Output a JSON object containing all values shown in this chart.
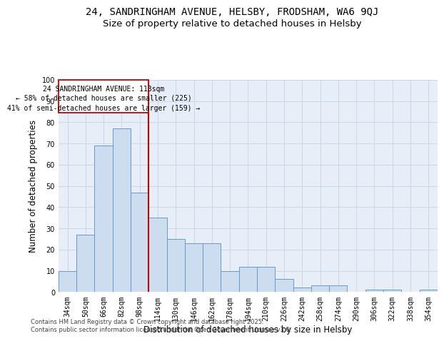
{
  "title_line1": "24, SANDRINGHAM AVENUE, HELSBY, FRODSHAM, WA6 9QJ",
  "title_line2": "Size of property relative to detached houses in Helsby",
  "xlabel": "Distribution of detached houses by size in Helsby",
  "ylabel": "Number of detached properties",
  "categories": [
    "34sqm",
    "50sqm",
    "66sqm",
    "82sqm",
    "98sqm",
    "114sqm",
    "130sqm",
    "146sqm",
    "162sqm",
    "178sqm",
    "194sqm",
    "210sqm",
    "226sqm",
    "242sqm",
    "258sqm",
    "274sqm",
    "290sqm",
    "306sqm",
    "322sqm",
    "338sqm",
    "354sqm"
  ],
  "values": [
    10,
    27,
    69,
    77,
    47,
    35,
    25,
    23,
    23,
    10,
    12,
    12,
    6,
    2,
    3,
    3,
    0,
    1,
    1,
    0,
    1
  ],
  "bar_color": "#ccddf0",
  "bar_edge_color": "#6699cc",
  "red_line_x": 4.5,
  "annotation_text_line1": "24 SANDRINGHAM AVENUE: 113sqm",
  "annotation_text_line2": "← 58% of detached houses are smaller (225)",
  "annotation_text_line3": "41% of semi-detached houses are larger (159) →",
  "annotation_box_edge": "#cc0000",
  "ylim": [
    0,
    100
  ],
  "yticks": [
    0,
    10,
    20,
    30,
    40,
    50,
    60,
    70,
    80,
    90,
    100
  ],
  "grid_color": "#c8d8ea",
  "background_color": "#e8eef8",
  "footer_text": "Contains HM Land Registry data © Crown copyright and database right 2025.\nContains public sector information licensed under the Open Government Licence v3.0.",
  "title_fontsize": 10,
  "subtitle_fontsize": 9.5,
  "axis_label_fontsize": 8.5,
  "tick_fontsize": 7,
  "footer_fontsize": 6
}
